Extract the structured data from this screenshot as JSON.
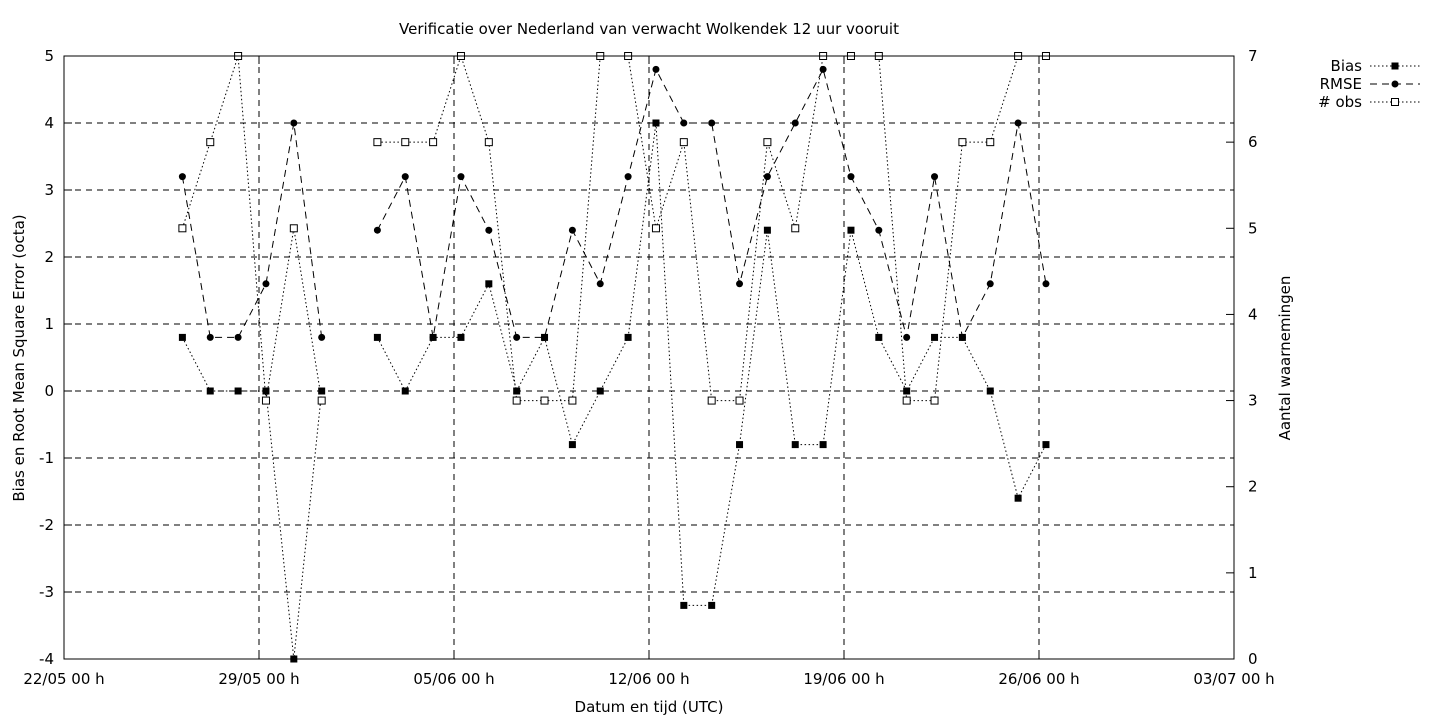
{
  "chart_data": {
    "type": "line",
    "title": "Verificatie over Nederland van verwacht Wolkendek 12 uur vooruit",
    "xlabel": "Datum en tijd (UTC)",
    "ylabel": "Bias en Root Mean Square Error (octa)",
    "y2label": "Aantal waarnemingen",
    "x_ticks": [
      "22/05 00 h",
      "29/05 00 h",
      "05/06 00 h",
      "12/06 00 h",
      "19/06 00 h",
      "26/06 00 h",
      "03/07 00 h"
    ],
    "xlim": [
      "2025-05-22T00",
      "2025-07-03T00"
    ],
    "ylim": [
      -4,
      5
    ],
    "y2lim": [
      0,
      7
    ],
    "y_ticks": [
      -4,
      -3,
      -2,
      -1,
      0,
      1,
      2,
      3,
      4,
      5
    ],
    "y2_ticks": [
      0,
      1,
      2,
      3,
      4,
      5,
      6,
      7
    ],
    "grid": true,
    "legend_position": "outside-top-right",
    "x": [
      "2025-05-26T06",
      "2025-05-27T06",
      "2025-05-28T06",
      "2025-05-29T06",
      "2025-05-30T06",
      "2025-05-31T06",
      "2025-06-01T06",
      "2025-06-02T06",
      "2025-06-03T06",
      "2025-06-04T06",
      "2025-06-05T06",
      "2025-06-06T06",
      "2025-06-07T06",
      "2025-06-08T06",
      "2025-06-09T06",
      "2025-06-10T06",
      "2025-06-11T06",
      "2025-06-12T06",
      "2025-06-13T06",
      "2025-06-14T06",
      "2025-06-15T06",
      "2025-06-16T06",
      "2025-06-17T06",
      "2025-06-18T06",
      "2025-06-19T06",
      "2025-06-20T06",
      "2025-06-21T06",
      "2025-06-22T06",
      "2025-06-23T06",
      "2025-06-24T06",
      "2025-06-25T06",
      "2025-06-26T06"
    ],
    "series": [
      {
        "name": "Bias",
        "axis": "y1",
        "style": "dotted",
        "marker": "filled-square",
        "values": [
          0.8,
          0,
          0,
          0,
          -4,
          0,
          null,
          0.8,
          0,
          0.8,
          0.8,
          1.6,
          0,
          0.8,
          -0.8,
          0,
          0.8,
          4,
          -3.2,
          -3.2,
          -0.8,
          2.4,
          -0.8,
          -0.8,
          2.4,
          0.8,
          0,
          0.8,
          0.8,
          0,
          -1.6,
          -0.8
        ]
      },
      {
        "name": "RMSE",
        "axis": "y1",
        "style": "dashed",
        "marker": "filled-circle",
        "values": [
          3.2,
          0.8,
          0.8,
          1.6,
          4,
          0.8,
          null,
          2.4,
          3.2,
          0.8,
          3.2,
          2.4,
          0.8,
          0.8,
          2.4,
          1.6,
          3.2,
          4.8,
          4,
          4,
          1.6,
          3.2,
          4,
          4.8,
          3.2,
          2.4,
          0.8,
          3.2,
          0.8,
          1.6,
          4,
          1.6
        ]
      },
      {
        "name": "# obs",
        "axis": "y2",
        "style": "dotted",
        "marker": "open-square",
        "values": [
          5,
          6,
          7,
          3,
          5,
          3,
          null,
          6,
          6,
          6,
          7,
          6,
          3,
          3,
          3,
          7,
          7,
          5,
          6,
          3,
          3,
          6,
          5,
          7,
          7,
          7,
          3,
          3,
          6,
          6,
          7,
          7
        ]
      }
    ]
  }
}
